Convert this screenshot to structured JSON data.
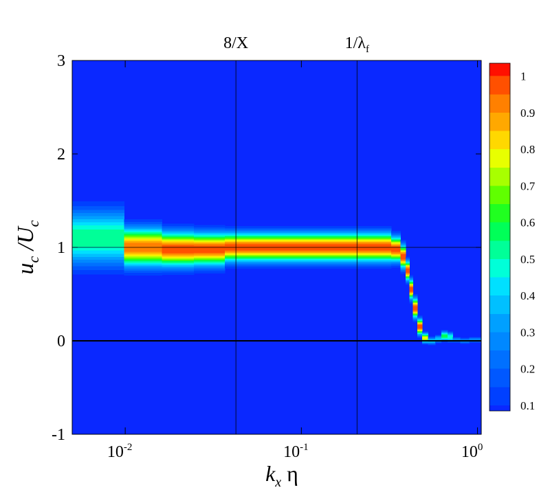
{
  "chart_data": {
    "type": "ridge-contour",
    "xlabel": {
      "text": "k",
      "sub": "x",
      "rest": " η"
    },
    "ylabel": {
      "text": "u",
      "sub": "c",
      "text2": " /U",
      "sub2": "c"
    },
    "xscale": "log",
    "xlim": [
      0.005,
      1.05
    ],
    "ylim": [
      -1,
      3
    ],
    "xticks": [
      {
        "value": 0.01,
        "label": "10",
        "exponent": "-2"
      },
      {
        "value": 0.1,
        "label": "10",
        "exponent": "-1"
      },
      {
        "value": 1,
        "label": "10",
        "exponent": "0"
      }
    ],
    "yticks": [
      -1,
      0,
      1,
      2,
      3
    ],
    "annotations": [
      {
        "x": 0.0425,
        "text": "8/X"
      },
      {
        "x": 0.207,
        "text": "1/λ",
        "sub": "f"
      }
    ],
    "hlines": [
      {
        "y": 1,
        "width": 0.8
      },
      {
        "y": 0,
        "width": 2
      }
    ],
    "x": [
      0.0075,
      0.013,
      0.02,
      0.03,
      0.045,
      0.065,
      0.1,
      0.15,
      0.22,
      0.3,
      0.35,
      0.38,
      0.4,
      0.42,
      0.44,
      0.47,
      0.5,
      0.55,
      0.6,
      0.65,
      0.7,
      0.75,
      0.85,
      0.95
    ],
    "center": [
      1.1,
      1.0,
      0.98,
      0.98,
      1.0,
      1.0,
      1.0,
      1.0,
      1.0,
      1.0,
      0.98,
      0.9,
      0.75,
      0.55,
      0.35,
      0.15,
      0.03,
      0.0,
      0.02,
      0.05,
      0.04,
      0.01,
      0.0,
      0.01
    ],
    "width": [
      0.3,
      0.2,
      0.18,
      0.17,
      0.15,
      0.15,
      0.15,
      0.15,
      0.15,
      0.15,
      0.13,
      0.12,
      0.1,
      0.1,
      0.1,
      0.08,
      0.05,
      0.04,
      0.04,
      0.05,
      0.05,
      0.03,
      0.03,
      0.03
    ],
    "peak": [
      0.55,
      0.95,
      1,
      1,
      1,
      1,
      1,
      1,
      1,
      1,
      1,
      1,
      1,
      1,
      1,
      1,
      0.8,
      0.4,
      0.4,
      0.6,
      0.5,
      0.3,
      0.3,
      0.3
    ],
    "levels": [
      0.1,
      0.15,
      0.2,
      0.25,
      0.3,
      0.35,
      0.4,
      0.45,
      0.5,
      0.55,
      0.6,
      0.65,
      0.7,
      0.75,
      0.8,
      0.85,
      0.9,
      0.95,
      1.0
    ],
    "colors": [
      "#0a28ff",
      "#0040ff",
      "#0058ff",
      "#0070ff",
      "#0088ff",
      "#00a0ff",
      "#00c0ff",
      "#00e0ff",
      "#00ffd8",
      "#00ff98",
      "#00ff58",
      "#20ff20",
      "#60ff00",
      "#a8ff00",
      "#e8ff00",
      "#ffd800",
      "#ffa800",
      "#ff8000",
      "#ff5000",
      "#ff1000"
    ],
    "clim": [
      0.085,
      1.035
    ],
    "colorbar_ticks": [
      0.1,
      0.2,
      0.3,
      0.4,
      0.5,
      0.6,
      0.7,
      0.8,
      0.9,
      1
    ]
  }
}
